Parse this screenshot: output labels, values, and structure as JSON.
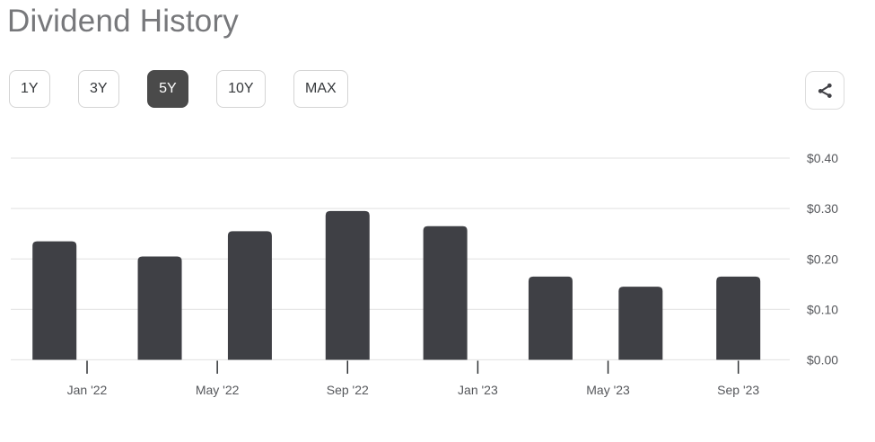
{
  "header": {
    "title": "Dividend History"
  },
  "toolbar": {
    "range_buttons": [
      {
        "label": "1Y",
        "selected": false
      },
      {
        "label": "3Y",
        "selected": false
      },
      {
        "label": "5Y",
        "selected": true
      },
      {
        "label": "10Y",
        "selected": false
      },
      {
        "label": "MAX",
        "selected": false
      }
    ],
    "share_icon": "share-nodes"
  },
  "colors": {
    "bar": "#3f4045",
    "grid_line": "#e7e7e7",
    "axis_text": "#55575b",
    "tick_mark": "#303336",
    "title_text": "#77787b",
    "selected_button_bg": "#4a4a4a",
    "button_border": "#d4d4d4",
    "icon": "#414146"
  },
  "chart_data": {
    "type": "bar",
    "title": "Dividend History",
    "xlabel": "",
    "ylabel": "",
    "ylim": [
      0,
      0.4
    ],
    "grid": true,
    "y_axis_side": "right",
    "bars": [
      {
        "date": "2021-12-01",
        "value": 0.235
      },
      {
        "date": "2022-03-08",
        "value": 0.205
      },
      {
        "date": "2022-06-01",
        "value": 0.255
      },
      {
        "date": "2022-09-01",
        "value": 0.295
      },
      {
        "date": "2022-12-01",
        "value": 0.265
      },
      {
        "date": "2023-03-08",
        "value": 0.165
      },
      {
        "date": "2023-06-01",
        "value": 0.145
      },
      {
        "date": "2023-09-01",
        "value": 0.165
      }
    ],
    "x_ticks": [
      {
        "date": "2022-01-01",
        "label": "Jan '22"
      },
      {
        "date": "2022-05-01",
        "label": "May '22"
      },
      {
        "date": "2022-09-01",
        "label": "Sep '22"
      },
      {
        "date": "2023-01-01",
        "label": "Jan '23"
      },
      {
        "date": "2023-05-01",
        "label": "May '23"
      },
      {
        "date": "2023-09-01",
        "label": "Sep '23"
      }
    ],
    "y_ticks": [
      {
        "value": 0.0,
        "label": "$0.00"
      },
      {
        "value": 0.1,
        "label": "$0.10"
      },
      {
        "value": 0.2,
        "label": "$0.20"
      },
      {
        "value": 0.3,
        "label": "$0.30"
      },
      {
        "value": 0.4,
        "label": "$0.40"
      }
    ]
  }
}
